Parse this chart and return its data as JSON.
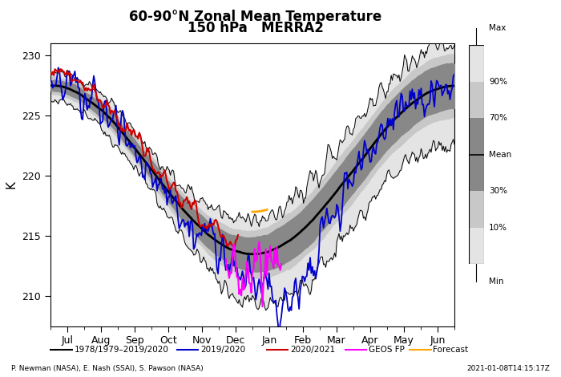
{
  "title_line1": "60-90°N Zonal Mean Temperature",
  "title_line2": "150 hPa   MERRA2",
  "ylabel": "K",
  "xlabel_months": [
    "Jul",
    "Aug",
    "Sep",
    "Oct",
    "Nov",
    "Dec",
    "Jan",
    "Feb",
    "Mar",
    "Apr",
    "May",
    "Jun"
  ],
  "ylim": [
    207.5,
    231.0
  ],
  "yticks": [
    210,
    215,
    220,
    225,
    230
  ],
  "footnote_left": "P. Newman (NASA), E. Nash (SSAI), S. Pawson (NASA)",
  "footnote_right": "2021-01-08T14:15:17Z",
  "legend_items": [
    "1978/1979–2019/2020",
    "2019/2020",
    "2020/2021",
    "GEOS FP",
    "Forecast"
  ],
  "legend_colors": [
    "#000000",
    "#0000cc",
    "#cc0000",
    "#ff00ff",
    "#ffa500"
  ],
  "colorbar_labels": [
    "Max",
    "90%",
    "70%",
    "Mean",
    "30%",
    "10%",
    "Min"
  ],
  "bg_color": "#ffffff"
}
